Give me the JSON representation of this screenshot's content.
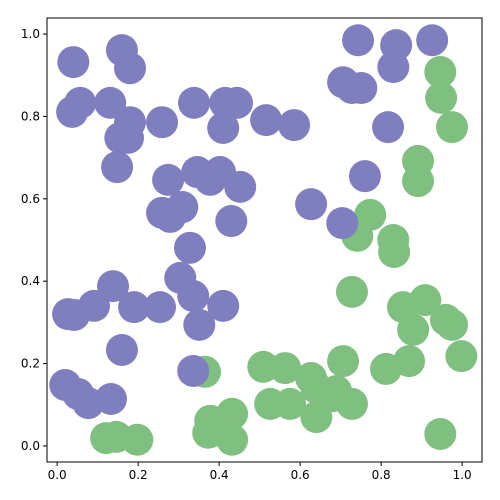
{
  "chart_data": {
    "type": "scatter",
    "xlim": [
      -0.025,
      1.049
    ],
    "ylim": [
      -0.039,
      1.039
    ],
    "xticks": [
      {
        "value": 0,
        "label": "0.0"
      },
      0.2,
      0.4,
      0.6,
      0.8,
      {
        "value": 1,
        "label": "1.0"
      }
    ],
    "yticks": [
      {
        "value": 0,
        "label": "0.0"
      },
      0.2,
      0.4,
      0.6,
      0.8,
      {
        "value": 1,
        "label": "1.0"
      }
    ],
    "series": [
      {
        "color": "#7fbf7f",
        "x": [
          0.946,
          0.948,
          0.975,
          0.891,
          0.891,
          0.773,
          0.741,
          0.83,
          0.832,
          0.728,
          0.854,
          0.909,
          0.879,
          0.96,
          0.975,
          0.998,
          0.869,
          0.812,
          0.706,
          0.563,
          0.509,
          0.526,
          0.575,
          0.627,
          0.64,
          0.681,
          0.64,
          0.689,
          0.728,
          0.365,
          0.378,
          0.432,
          0.432,
          0.373,
          0.121,
          0.146,
          0.198,
          0.946
        ],
        "y": [
          0.908,
          0.845,
          0.774,
          0.692,
          0.643,
          0.561,
          0.51,
          0.5,
          0.471,
          0.374,
          0.337,
          0.354,
          0.282,
          0.306,
          0.294,
          0.218,
          0.206,
          0.187,
          0.206,
          0.189,
          0.192,
          0.102,
          0.102,
          0.165,
          0.141,
          0.121,
          0.07,
          0.133,
          0.102,
          0.18,
          0.061,
          0.078,
          0.015,
          0.032,
          0.019,
          0.022,
          0.015,
          0.029
        ]
      },
      {
        "color": "#7f7fbf",
        "x": [
          0.04,
          0.16,
          0.18,
          0.057,
          0.037,
          0.131,
          0.18,
          0.156,
          0.175,
          0.259,
          0.338,
          0.415,
          0.444,
          0.41,
          0.516,
          0.585,
          0.148,
          0.274,
          0.346,
          0.402,
          0.378,
          0.452,
          0.259,
          0.279,
          0.309,
          0.43,
          0.627,
          0.704,
          0.328,
          0.304,
          0.336,
          0.138,
          0.091,
          0.19,
          0.254,
          0.027,
          0.042,
          0.351,
          0.41,
          0.16,
          0.02,
          0.052,
          0.077,
          0.133,
          0.336,
          0.706,
          0.728,
          0.751,
          0.743,
          0.837,
          0.83,
          0.926,
          0.817,
          0.76
        ],
        "y": [
          0.932,
          0.961,
          0.917,
          0.833,
          0.811,
          0.833,
          0.786,
          0.748,
          0.748,
          0.786,
          0.833,
          0.833,
          0.833,
          0.772,
          0.791,
          0.779,
          0.677,
          0.646,
          0.665,
          0.665,
          0.646,
          0.629,
          0.566,
          0.556,
          0.58,
          0.546,
          0.587,
          0.541,
          0.481,
          0.408,
          0.364,
          0.388,
          0.34,
          0.337,
          0.337,
          0.32,
          0.318,
          0.294,
          0.34,
          0.233,
          0.148,
          0.126,
          0.104,
          0.114,
          0.182,
          0.883,
          0.869,
          0.869,
          0.985,
          0.973,
          0.92,
          0.985,
          0.774,
          0.655
        ]
      }
    ]
  }
}
